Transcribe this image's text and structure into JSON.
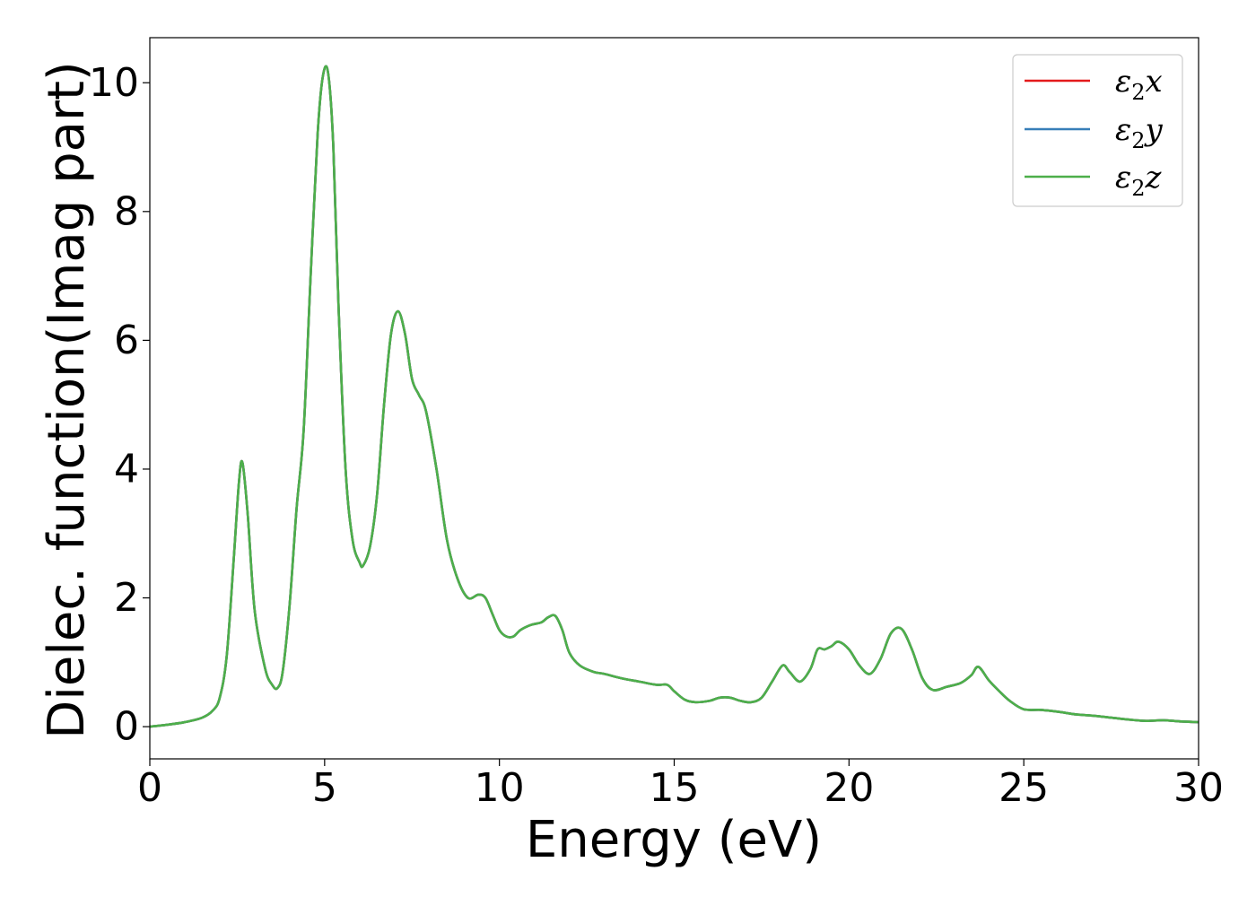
{
  "chart_data": {
    "type": "line",
    "xlabel": "Energy (eV)",
    "ylabel": "Dielec. function(Imag part)",
    "xlim": [
      0,
      30
    ],
    "ylim": [
      -0.5,
      10.7
    ],
    "x_ticks": [
      0,
      5,
      10,
      15,
      20,
      25,
      30
    ],
    "y_ticks": [
      0,
      2,
      4,
      6,
      8,
      10
    ],
    "grid": false,
    "legend_position": "top-right",
    "series": [
      {
        "name": "ε2x",
        "legend_base": "ε",
        "legend_sub": "2",
        "legend_axis": "x",
        "color": "#e41a1c",
        "x": [
          0,
          0.5,
          1.0,
          1.5,
          1.8,
          2.0,
          2.2,
          2.4,
          2.55,
          2.65,
          2.8,
          3.0,
          3.3,
          3.5,
          3.65,
          3.8,
          4.0,
          4.2,
          4.4,
          4.6,
          4.8,
          4.95,
          5.1,
          5.25,
          5.4,
          5.6,
          5.8,
          6.0,
          6.1,
          6.3,
          6.5,
          6.7,
          6.9,
          7.1,
          7.3,
          7.5,
          7.7,
          7.9,
          8.2,
          8.5,
          8.8,
          9.1,
          9.4,
          9.6,
          9.8,
          10.0,
          10.2,
          10.4,
          10.6,
          10.9,
          11.2,
          11.4,
          11.6,
          11.8,
          12.0,
          12.3,
          12.7,
          13.0,
          13.5,
          14.0,
          14.5,
          14.8,
          15.0,
          15.3,
          15.6,
          16.0,
          16.3,
          16.6,
          16.9,
          17.2,
          17.5,
          17.8,
          18.1,
          18.3,
          18.6,
          18.9,
          19.1,
          19.3,
          19.5,
          19.7,
          20.0,
          20.3,
          20.6,
          20.9,
          21.2,
          21.5,
          21.8,
          22.1,
          22.4,
          22.8,
          23.2,
          23.5,
          23.7,
          24.0,
          24.3,
          24.6,
          25.0,
          25.5,
          26.0,
          26.5,
          27.0,
          27.5,
          28.0,
          28.5,
          29.0,
          29.5,
          30.0
        ],
        "values": [
          0.0,
          0.03,
          0.07,
          0.14,
          0.25,
          0.45,
          1.1,
          2.6,
          3.8,
          4.1,
          3.3,
          1.8,
          0.9,
          0.65,
          0.6,
          0.85,
          1.9,
          3.4,
          4.6,
          7.0,
          9.2,
          10.1,
          10.15,
          9.0,
          6.5,
          4.0,
          2.9,
          2.55,
          2.5,
          2.8,
          3.6,
          5.0,
          6.1,
          6.45,
          6.1,
          5.4,
          5.15,
          4.9,
          4.0,
          2.9,
          2.3,
          2.0,
          2.05,
          2.0,
          1.75,
          1.5,
          1.4,
          1.4,
          1.5,
          1.58,
          1.62,
          1.7,
          1.72,
          1.5,
          1.15,
          0.95,
          0.85,
          0.82,
          0.75,
          0.7,
          0.65,
          0.65,
          0.55,
          0.42,
          0.38,
          0.4,
          0.45,
          0.45,
          0.4,
          0.38,
          0.45,
          0.7,
          0.95,
          0.85,
          0.7,
          0.9,
          1.2,
          1.2,
          1.25,
          1.32,
          1.2,
          0.95,
          0.82,
          1.05,
          1.45,
          1.52,
          1.2,
          0.75,
          0.57,
          0.62,
          0.68,
          0.8,
          0.93,
          0.72,
          0.55,
          0.4,
          0.27,
          0.26,
          0.23,
          0.19,
          0.17,
          0.14,
          0.11,
          0.09,
          0.1,
          0.08,
          0.07
        ]
      },
      {
        "name": "ε2y",
        "legend_base": "ε",
        "legend_sub": "2",
        "legend_axis": "y",
        "color": "#377eb8",
        "x": [
          0,
          0.5,
          1.0,
          1.5,
          1.8,
          2.0,
          2.2,
          2.4,
          2.55,
          2.65,
          2.8,
          3.0,
          3.3,
          3.5,
          3.65,
          3.8,
          4.0,
          4.2,
          4.4,
          4.6,
          4.8,
          4.95,
          5.1,
          5.25,
          5.4,
          5.6,
          5.8,
          6.0,
          6.1,
          6.3,
          6.5,
          6.7,
          6.9,
          7.1,
          7.3,
          7.5,
          7.7,
          7.9,
          8.2,
          8.5,
          8.8,
          9.1,
          9.4,
          9.6,
          9.8,
          10.0,
          10.2,
          10.4,
          10.6,
          10.9,
          11.2,
          11.4,
          11.6,
          11.8,
          12.0,
          12.3,
          12.7,
          13.0,
          13.5,
          14.0,
          14.5,
          14.8,
          15.0,
          15.3,
          15.6,
          16.0,
          16.3,
          16.6,
          16.9,
          17.2,
          17.5,
          17.8,
          18.1,
          18.3,
          18.6,
          18.9,
          19.1,
          19.3,
          19.5,
          19.7,
          20.0,
          20.3,
          20.6,
          20.9,
          21.2,
          21.5,
          21.8,
          22.1,
          22.4,
          22.8,
          23.2,
          23.5,
          23.7,
          24.0,
          24.3,
          24.6,
          25.0,
          25.5,
          26.0,
          26.5,
          27.0,
          27.5,
          28.0,
          28.5,
          29.0,
          29.5,
          30.0
        ],
        "values": [
          0.0,
          0.03,
          0.07,
          0.14,
          0.25,
          0.45,
          1.1,
          2.6,
          3.8,
          4.1,
          3.3,
          1.8,
          0.9,
          0.65,
          0.6,
          0.85,
          1.9,
          3.4,
          4.6,
          7.0,
          9.2,
          10.1,
          10.15,
          9.0,
          6.5,
          4.0,
          2.9,
          2.55,
          2.5,
          2.8,
          3.6,
          5.0,
          6.1,
          6.45,
          6.1,
          5.4,
          5.15,
          4.9,
          4.0,
          2.9,
          2.3,
          2.0,
          2.05,
          2.0,
          1.75,
          1.5,
          1.4,
          1.4,
          1.5,
          1.58,
          1.62,
          1.7,
          1.72,
          1.5,
          1.15,
          0.95,
          0.85,
          0.82,
          0.75,
          0.7,
          0.65,
          0.65,
          0.55,
          0.42,
          0.38,
          0.4,
          0.45,
          0.45,
          0.4,
          0.38,
          0.45,
          0.7,
          0.95,
          0.85,
          0.7,
          0.9,
          1.2,
          1.2,
          1.25,
          1.32,
          1.2,
          0.95,
          0.82,
          1.05,
          1.45,
          1.52,
          1.2,
          0.75,
          0.57,
          0.62,
          0.68,
          0.8,
          0.93,
          0.72,
          0.55,
          0.4,
          0.27,
          0.26,
          0.23,
          0.19,
          0.17,
          0.14,
          0.11,
          0.09,
          0.1,
          0.08,
          0.07
        ]
      },
      {
        "name": "ε2z",
        "legend_base": "ε",
        "legend_sub": "2",
        "legend_axis": "z",
        "color": "#4daf4a",
        "x": [
          0,
          0.5,
          1.0,
          1.5,
          1.8,
          2.0,
          2.2,
          2.4,
          2.55,
          2.65,
          2.8,
          3.0,
          3.3,
          3.5,
          3.65,
          3.8,
          4.0,
          4.2,
          4.4,
          4.6,
          4.8,
          4.95,
          5.1,
          5.25,
          5.4,
          5.6,
          5.8,
          6.0,
          6.1,
          6.3,
          6.5,
          6.7,
          6.9,
          7.1,
          7.3,
          7.5,
          7.7,
          7.9,
          8.2,
          8.5,
          8.8,
          9.1,
          9.4,
          9.6,
          9.8,
          10.0,
          10.2,
          10.4,
          10.6,
          10.9,
          11.2,
          11.4,
          11.6,
          11.8,
          12.0,
          12.3,
          12.7,
          13.0,
          13.5,
          14.0,
          14.5,
          14.8,
          15.0,
          15.3,
          15.6,
          16.0,
          16.3,
          16.6,
          16.9,
          17.2,
          17.5,
          17.8,
          18.1,
          18.3,
          18.6,
          18.9,
          19.1,
          19.3,
          19.5,
          19.7,
          20.0,
          20.3,
          20.6,
          20.9,
          21.2,
          21.5,
          21.8,
          22.1,
          22.4,
          22.8,
          23.2,
          23.5,
          23.7,
          24.0,
          24.3,
          24.6,
          25.0,
          25.5,
          26.0,
          26.5,
          27.0,
          27.5,
          28.0,
          28.5,
          29.0,
          29.5,
          30.0
        ],
        "values": [
          0.0,
          0.03,
          0.07,
          0.14,
          0.25,
          0.45,
          1.1,
          2.6,
          3.8,
          4.1,
          3.3,
          1.8,
          0.9,
          0.65,
          0.6,
          0.85,
          1.9,
          3.4,
          4.6,
          7.0,
          9.2,
          10.1,
          10.15,
          9.0,
          6.5,
          4.0,
          2.9,
          2.55,
          2.5,
          2.8,
          3.6,
          5.0,
          6.1,
          6.45,
          6.1,
          5.4,
          5.15,
          4.9,
          4.0,
          2.9,
          2.3,
          2.0,
          2.05,
          2.0,
          1.75,
          1.5,
          1.4,
          1.4,
          1.5,
          1.58,
          1.62,
          1.7,
          1.72,
          1.5,
          1.15,
          0.95,
          0.85,
          0.82,
          0.75,
          0.7,
          0.65,
          0.65,
          0.55,
          0.42,
          0.38,
          0.4,
          0.45,
          0.45,
          0.4,
          0.38,
          0.45,
          0.7,
          0.95,
          0.85,
          0.7,
          0.9,
          1.2,
          1.2,
          1.25,
          1.32,
          1.2,
          0.95,
          0.82,
          1.05,
          1.45,
          1.52,
          1.2,
          0.75,
          0.57,
          0.62,
          0.68,
          0.8,
          0.93,
          0.72,
          0.55,
          0.4,
          0.27,
          0.26,
          0.23,
          0.19,
          0.17,
          0.14,
          0.11,
          0.09,
          0.1,
          0.08,
          0.07
        ]
      }
    ]
  }
}
